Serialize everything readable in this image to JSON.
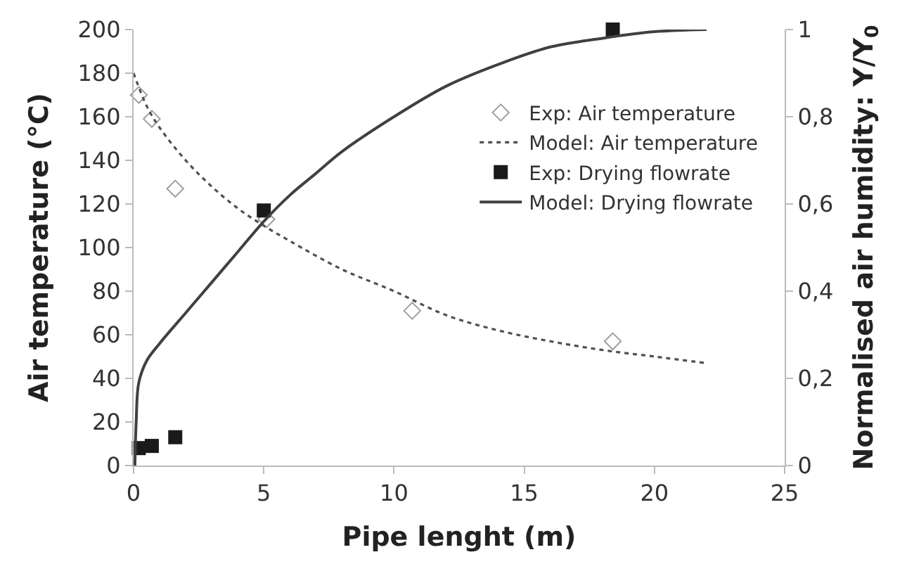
{
  "chart_data": {
    "type": "scatter",
    "xlabel": "Pipe lenght (m)",
    "ylabel": "Air temperature (°C)",
    "y2label": "Normalised air humidity: Y/Y$_{0}$",
    "xlim": [
      0,
      25
    ],
    "xticks": [
      0,
      5,
      10,
      15,
      20,
      25
    ],
    "ylim": [
      0,
      200
    ],
    "yticks": [
      0,
      20,
      40,
      60,
      80,
      100,
      120,
      140,
      160,
      180,
      200
    ],
    "y2lim": [
      0,
      1
    ],
    "y2ticks": [
      {
        "value": 0,
        "label": "0"
      },
      {
        "value": 0.2,
        "label": "0,2"
      },
      {
        "value": 0.4,
        "label": "0,4"
      },
      {
        "value": 0.6,
        "label": "0,6"
      },
      {
        "value": 0.8,
        "label": "0,8"
      },
      {
        "value": 1,
        "label": "1"
      }
    ],
    "grid": false,
    "legend": "top right",
    "series": [
      {
        "name": "Exp: Air temperature",
        "marker": "diamond",
        "color": "#a0a0a0",
        "x": [
          0.2,
          0.7,
          1.6,
          5.1,
          10.7,
          18.4
        ],
        "values": [
          170,
          159,
          127,
          113,
          71,
          57
        ]
      },
      {
        "name": "Model: Air temperature",
        "type": "line",
        "line_style": "dotted",
        "color": "#505050",
        "x": [
          0,
          0.5,
          1,
          2,
          3,
          4,
          5,
          6,
          8,
          10,
          12,
          14,
          16,
          18,
          20,
          22
        ],
        "values": [
          180,
          165,
          155,
          140,
          128,
          118,
          110,
          103,
          90,
          80,
          69,
          62,
          57,
          53,
          50,
          47
        ]
      },
      {
        "name": "Exp: Drying flowrate",
        "marker": "square",
        "color": "#1a1a1a",
        "axis": "y2",
        "x": [
          0.2,
          0.7,
          1.6,
          5,
          18.4
        ],
        "values": [
          0.04,
          0.045,
          0.065,
          0.585,
          1.0
        ]
      },
      {
        "name": "Model: Drying flowrate",
        "type": "line",
        "line_style": "solid",
        "color": "#404040",
        "axis": "y2",
        "x": [
          0.05,
          0.1,
          0.2,
          0.5,
          1,
          2,
          3,
          4,
          5,
          6,
          7,
          8,
          10,
          12,
          14,
          16,
          18,
          20,
          22
        ],
        "values": [
          0,
          0.1,
          0.19,
          0.24,
          0.28,
          0.35,
          0.42,
          0.49,
          0.56,
          0.62,
          0.67,
          0.72,
          0.8,
          0.87,
          0.92,
          0.96,
          0.98,
          0.995,
          1.0
        ]
      }
    ]
  }
}
